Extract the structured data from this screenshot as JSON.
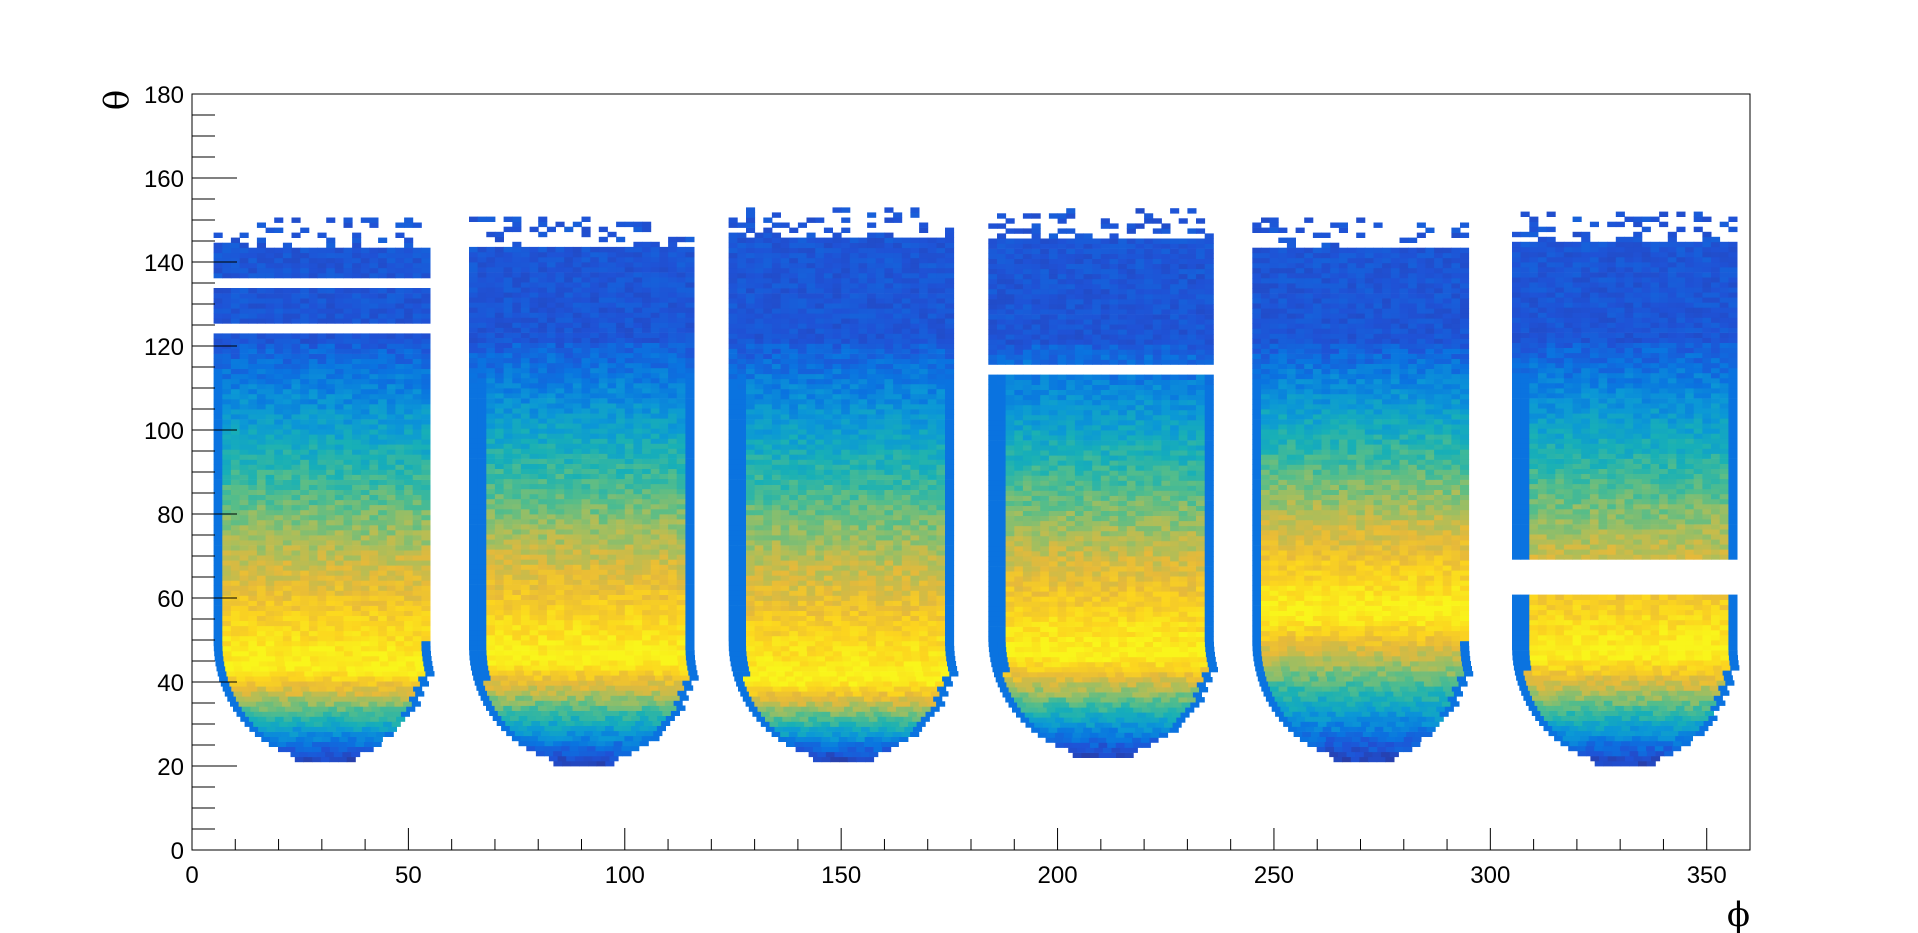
{
  "chart_data": {
    "type": "heatmap",
    "title": "",
    "xlabel": "ϕ",
    "ylabel": "θ",
    "xlim": [
      0,
      360
    ],
    "ylim": [
      0,
      180
    ],
    "x_ticks": [
      0,
      50,
      100,
      150,
      200,
      250,
      300,
      350
    ],
    "y_ticks": [
      0,
      20,
      40,
      60,
      80,
      100,
      120,
      140,
      160,
      180
    ],
    "x_tick_labels": [
      "0",
      "50",
      "100",
      "150",
      "200",
      "250",
      "300",
      "350"
    ],
    "y_tick_labels": [
      "0",
      "20",
      "40",
      "60",
      "80",
      "100",
      "120",
      "140",
      "160",
      "180"
    ],
    "grid": false,
    "colormap": [
      "#283ea8",
      "#1f52d6",
      "#0a74e0",
      "#0b98d6",
      "#18b0b6",
      "#55bd8a",
      "#a8be5c",
      "#e6b93a",
      "#fcd41f",
      "#f9f51b"
    ],
    "sectors": [
      {
        "phi_min": 5,
        "phi_max": 55,
        "theta_min": 21,
        "theta_max": 150,
        "peak_theta": 43,
        "gaps": [
          [
            122.5,
            125.0
          ],
          [
            133.5,
            136.0
          ]
        ]
      },
      {
        "phi_min": 64,
        "phi_max": 116,
        "theta_min": 20,
        "theta_max": 150,
        "peak_theta": 45,
        "gaps": []
      },
      {
        "phi_min": 124,
        "phi_max": 176,
        "theta_min": 21,
        "theta_max": 152,
        "peak_theta": 40,
        "gaps": []
      },
      {
        "phi_min": 184,
        "phi_max": 236,
        "theta_min": 22,
        "theta_max": 152,
        "peak_theta": 46,
        "gaps": [
          [
            112.5,
            114.5
          ]
        ]
      },
      {
        "phi_min": 245,
        "phi_max": 295,
        "theta_min": 21,
        "theta_max": 150,
        "peak_theta": 56,
        "gaps": []
      },
      {
        "phi_min": 305,
        "phi_max": 356,
        "theta_min": 20,
        "theta_max": 151,
        "peak_theta": 46,
        "gaps": [
          [
            60.5,
            68.5
          ]
        ]
      }
    ]
  }
}
